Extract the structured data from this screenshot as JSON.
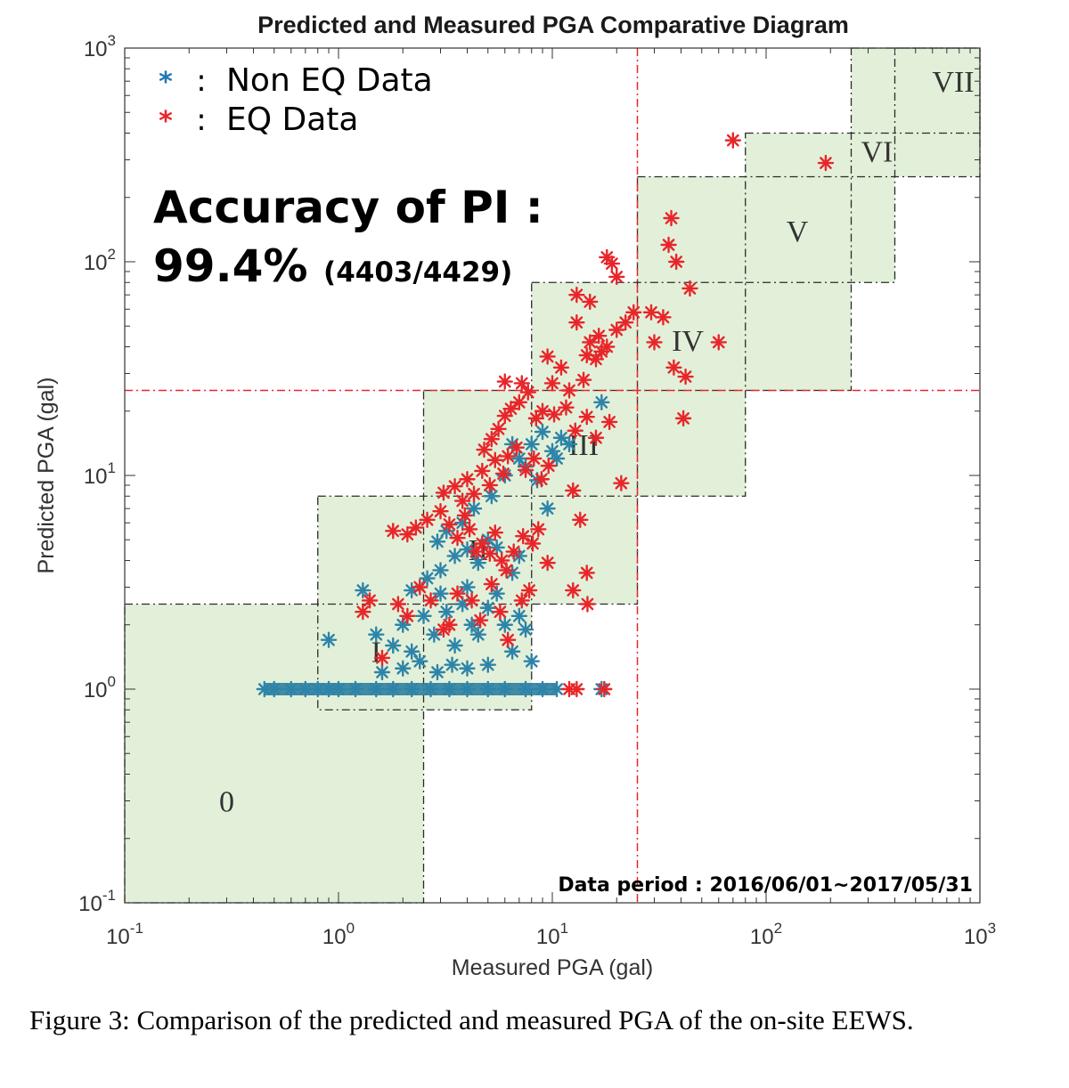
{
  "chart_data": {
    "type": "scatter",
    "title": "Predicted and Measured PGA Comparative Diagram",
    "xlabel": "Measured PGA (gal)",
    "ylabel": "Predicted PGA (gal)",
    "xscale": "log",
    "yscale": "log",
    "xlim": [
      0.1,
      1000
    ],
    "ylim": [
      0.1,
      1000
    ],
    "x_ticks": [
      {
        "base": "10",
        "exp": "-1",
        "value": 0.1
      },
      {
        "base": "10",
        "exp": "0",
        "value": 1
      },
      {
        "base": "10",
        "exp": "1",
        "value": 10
      },
      {
        "base": "10",
        "exp": "2",
        "value": 100
      },
      {
        "base": "10",
        "exp": "3",
        "value": 1000
      }
    ],
    "y_ticks": [
      {
        "base": "10",
        "exp": "-1",
        "value": 0.1
      },
      {
        "base": "10",
        "exp": "0",
        "value": 1
      },
      {
        "base": "10",
        "exp": "1",
        "value": 10
      },
      {
        "base": "10",
        "exp": "2",
        "value": 100
      },
      {
        "base": "10",
        "exp": "3",
        "value": 1000
      }
    ],
    "legend": {
      "placement": "top-left",
      "entries": [
        {
          "marker": "*",
          "separator": ":",
          "label": "Non EQ Data",
          "color": "#1f77b4"
        },
        {
          "marker": "*",
          "separator": ":",
          "label": "EQ Data",
          "color": "#e8262a"
        }
      ]
    },
    "annotations": {
      "accuracy_title": "Accuracy of PI :",
      "accuracy_value": "99.4%",
      "accuracy_count": "(4403/4429)",
      "data_period": "Data period : 2016/06/01~2017/05/31"
    },
    "threshold_lines": {
      "x": 25,
      "y": 25,
      "color": "#e8262a"
    },
    "intensity_zones": [
      {
        "label": "0",
        "x": [
          0.1,
          2.5
        ],
        "y": [
          0.1,
          2.5
        ]
      },
      {
        "label": "I",
        "x": [
          0.8,
          8
        ],
        "y": [
          0.8,
          8
        ]
      },
      {
        "label": "II",
        "x": [
          2.5,
          25
        ],
        "y": [
          2.5,
          25
        ]
      },
      {
        "label": "III",
        "x": [
          8,
          80
        ],
        "y": [
          8,
          80
        ]
      },
      {
        "label": "IV",
        "x": [
          25,
          250
        ],
        "y": [
          25,
          250
        ]
      },
      {
        "label": "V",
        "x": [
          80,
          400
        ],
        "y": [
          80,
          400
        ]
      },
      {
        "label": "VI",
        "x": [
          250,
          1000
        ],
        "y": [
          250,
          1000
        ]
      },
      {
        "label": "VII",
        "x": [
          400,
          1000
        ],
        "y": [
          400,
          1000
        ]
      }
    ],
    "zone_label_positions": [
      {
        "label": "0",
        "x": 0.3,
        "y": 0.3
      },
      {
        "label": "I",
        "x": 1.5,
        "y": 1.5
      },
      {
        "label": "II",
        "x": 4.5,
        "y": 4.5
      },
      {
        "label": "III",
        "x": 14,
        "y": 14
      },
      {
        "label": "IV",
        "x": 43,
        "y": 43
      },
      {
        "label": "V",
        "x": 140,
        "y": 140
      },
      {
        "label": "VI",
        "x": 330,
        "y": 330
      },
      {
        "label": "VII",
        "x": 750,
        "y": 700
      }
    ],
    "zone_color": "#e2f0d9",
    "series": [
      {
        "name": "Non EQ Data",
        "color": "#1f77b4",
        "points": [
          [
            0.45,
            1
          ],
          [
            0.5,
            1
          ],
          [
            0.6,
            1
          ],
          [
            0.7,
            1
          ],
          [
            0.8,
            1
          ],
          [
            0.9,
            1
          ],
          [
            1.0,
            1
          ],
          [
            1.2,
            1
          ],
          [
            1.5,
            1
          ],
          [
            1.8,
            1
          ],
          [
            2.2,
            1
          ],
          [
            2.7,
            1
          ],
          [
            3.3,
            1
          ],
          [
            4.0,
            1
          ],
          [
            5.0,
            1
          ],
          [
            6.0,
            1
          ],
          [
            7.5,
            1
          ],
          [
            9.0,
            1
          ],
          [
            10.5,
            1
          ],
          [
            17,
            1
          ],
          [
            1.3,
            2.9
          ],
          [
            0.9,
            1.7
          ],
          [
            1.5,
            1.8
          ],
          [
            1.8,
            1.6
          ],
          [
            2.0,
            2.0
          ],
          [
            2.2,
            1.5
          ],
          [
            2.5,
            2.2
          ],
          [
            2.8,
            1.8
          ],
          [
            3.0,
            2.8
          ],
          [
            3.2,
            2.3
          ],
          [
            3.5,
            1.6
          ],
          [
            3.8,
            2.5
          ],
          [
            4.0,
            3.0
          ],
          [
            4.2,
            2.0
          ],
          [
            4.5,
            1.8
          ],
          [
            5.0,
            2.4
          ],
          [
            5.5,
            2.8
          ],
          [
            6.0,
            2.0
          ],
          [
            6.5,
            1.5
          ],
          [
            7.0,
            2.2
          ],
          [
            7.5,
            1.9
          ],
          [
            2.0,
            1.25
          ],
          [
            2.4,
            1.35
          ],
          [
            2.9,
            1.2
          ],
          [
            3.4,
            1.3
          ],
          [
            4.0,
            1.25
          ],
          [
            5.0,
            1.3
          ],
          [
            1.6,
            1.2
          ],
          [
            8.0,
            1.35
          ],
          [
            2.2,
            2.9
          ],
          [
            2.6,
            3.3
          ],
          [
            3.0,
            3.6
          ],
          [
            3.5,
            4.2
          ],
          [
            4.0,
            4.5
          ],
          [
            4.5,
            3.9
          ],
          [
            5.0,
            5.0
          ],
          [
            5.5,
            4.6
          ],
          [
            3.2,
            5.5
          ],
          [
            2.9,
            4.9
          ],
          [
            6.5,
            3.5
          ],
          [
            7.0,
            4.2
          ],
          [
            3.8,
            6.0
          ],
          [
            4.3,
            7.0
          ],
          [
            5.2,
            8.0
          ],
          [
            6.0,
            10
          ],
          [
            7.0,
            12
          ],
          [
            8.0,
            14
          ],
          [
            6.5,
            14
          ],
          [
            7.5,
            11
          ],
          [
            10,
            13
          ],
          [
            9,
            16
          ],
          [
            11,
            15
          ],
          [
            12,
            14
          ],
          [
            17,
            22
          ],
          [
            8.5,
            9.5
          ],
          [
            9.5,
            7.0
          ],
          [
            10.5,
            12
          ]
        ]
      },
      {
        "name": "EQ Data",
        "color": "#e8262a",
        "points": [
          [
            13,
            1
          ],
          [
            12,
            1
          ],
          [
            17.5,
            1
          ],
          [
            1.4,
            2.6
          ],
          [
            1.3,
            2.3
          ],
          [
            1.6,
            1.4
          ],
          [
            1.9,
            2.5
          ],
          [
            2.1,
            2.2
          ],
          [
            2.4,
            3.0
          ],
          [
            2.7,
            2.6
          ],
          [
            3.1,
            1.9
          ],
          [
            3.3,
            2.0
          ],
          [
            3.6,
            2.8
          ],
          [
            4.2,
            2.6
          ],
          [
            4.6,
            2.1
          ],
          [
            5.2,
            3.1
          ],
          [
            5.7,
            2.3
          ],
          [
            6.2,
            1.7
          ],
          [
            7.2,
            2.6
          ],
          [
            7.8,
            2.9
          ],
          [
            1.8,
            5.5
          ],
          [
            2.1,
            5.3
          ],
          [
            2.3,
            5.7
          ],
          [
            2.6,
            6.2
          ],
          [
            3.0,
            6.8
          ],
          [
            3.3,
            5.9
          ],
          [
            3.6,
            5.1
          ],
          [
            3.9,
            6.5
          ],
          [
            4.1,
            5.6
          ],
          [
            4.4,
            4.4
          ],
          [
            4.7,
            4.8
          ],
          [
            5.1,
            4.3
          ],
          [
            5.4,
            5.4
          ],
          [
            5.8,
            4.0
          ],
          [
            6.1,
            3.6
          ],
          [
            6.6,
            4.4
          ],
          [
            7.3,
            5.2
          ],
          [
            8.1,
            4.8
          ],
          [
            8.6,
            5.6
          ],
          [
            9.5,
            3.9
          ],
          [
            3.1,
            8.3
          ],
          [
            3.5,
            8.9
          ],
          [
            3.8,
            7.6
          ],
          [
            4.0,
            9.6
          ],
          [
            4.3,
            8.2
          ],
          [
            4.7,
            10.5
          ],
          [
            5.1,
            9.0
          ],
          [
            5.4,
            11.8
          ],
          [
            5.9,
            10.2
          ],
          [
            6.2,
            12.3
          ],
          [
            6.8,
            13.5
          ],
          [
            7.5,
            10.6
          ],
          [
            8.2,
            12.0
          ],
          [
            8.9,
            9.6
          ],
          [
            9.6,
            11.1
          ],
          [
            4.8,
            13.2
          ],
          [
            5.2,
            14.8
          ],
          [
            5.6,
            16.5
          ],
          [
            6.0,
            19.0
          ],
          [
            6.4,
            20.5
          ],
          [
            7.0,
            22.0
          ],
          [
            7.7,
            24.5
          ],
          [
            8.4,
            18.5
          ],
          [
            9.0,
            20.0
          ],
          [
            10.2,
            19.3
          ],
          [
            11.6,
            20.8
          ],
          [
            12.8,
            16.2
          ],
          [
            14.5,
            18.8
          ],
          [
            16.0,
            15.0
          ],
          [
            18.5,
            17.8
          ],
          [
            21,
            9.2
          ],
          [
            6.0,
            27.5
          ],
          [
            7.2,
            27.0
          ],
          [
            10.0,
            27.0
          ],
          [
            15.0,
            42.0
          ],
          [
            17,
            38
          ],
          [
            18,
            40
          ],
          [
            16,
            35
          ],
          [
            14.5,
            36.5
          ],
          [
            20,
            48
          ],
          [
            24,
            58
          ],
          [
            22,
            52
          ],
          [
            13,
            70
          ],
          [
            15,
            65
          ],
          [
            20,
            85
          ],
          [
            18,
            105
          ],
          [
            19,
            98
          ],
          [
            29,
            58
          ],
          [
            30,
            42
          ],
          [
            33,
            55
          ],
          [
            35,
            120
          ],
          [
            36,
            160
          ],
          [
            38,
            100
          ],
          [
            37,
            32
          ],
          [
            44,
            75
          ],
          [
            42,
            29
          ],
          [
            41,
            18.5
          ],
          [
            60,
            42
          ],
          [
            70,
            370
          ],
          [
            190,
            290
          ],
          [
            12,
            25
          ],
          [
            14,
            28
          ],
          [
            11,
            32
          ],
          [
            9.5,
            36
          ],
          [
            13,
            52
          ],
          [
            16.5,
            45
          ],
          [
            12.5,
            8.5
          ],
          [
            13.5,
            6.2
          ],
          [
            14.5,
            3.5
          ],
          [
            12.5,
            2.9
          ],
          [
            14.6,
            2.5
          ]
        ]
      }
    ]
  },
  "caption": "Figure 3: Comparison of the predicted and measured PGA of the on-site EEWS."
}
